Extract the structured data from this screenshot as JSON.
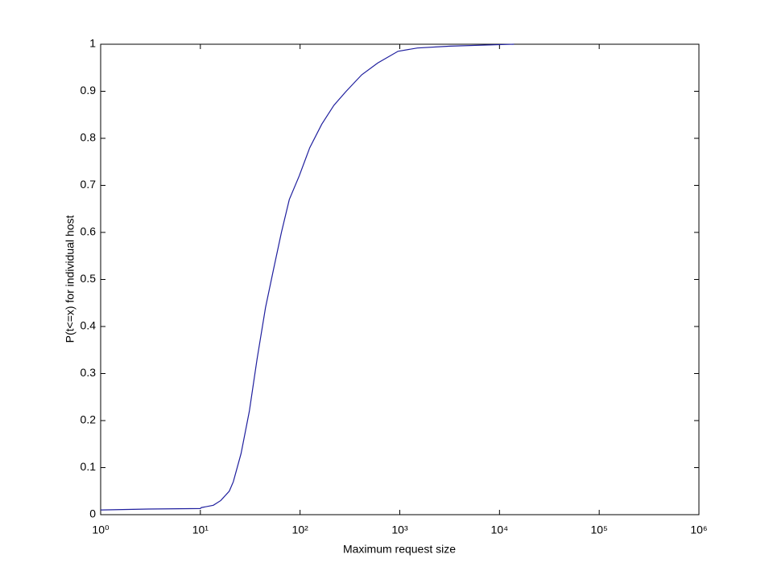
{
  "chart_data": {
    "type": "line",
    "x_label": "Maximum request size",
    "y_label": "P(t<=x) for individual host",
    "x_scale": "log",
    "xlim": [
      1,
      1000000
    ],
    "ylim": [
      0,
      1
    ],
    "xticks": [
      {
        "value": 1,
        "label": "10⁰"
      },
      {
        "value": 10,
        "label": "10¹"
      },
      {
        "value": 100,
        "label": "10²"
      },
      {
        "value": 1000,
        "label": "10³"
      },
      {
        "value": 10000,
        "label": "10⁴"
      },
      {
        "value": 100000,
        "label": "10⁵"
      },
      {
        "value": 1000000,
        "label": "10⁶"
      }
    ],
    "yticks": [
      0,
      0.1,
      0.2,
      0.3,
      0.4,
      0.5,
      0.6,
      0.7,
      0.8,
      0.9,
      1
    ],
    "grid": false,
    "series": [
      {
        "color": "#1f1f9e",
        "x": [
          1,
          3,
          10,
          10.2,
          13.5,
          16,
          19.5,
          21.4,
          25.6,
          31,
          37,
          45,
          54,
          65,
          78,
          98,
          125,
          165,
          218,
          290,
          415,
          600,
          960,
          1500,
          3200,
          9700,
          14000
        ],
        "values": [
          0.01,
          0.012,
          0.013,
          0.015,
          0.02,
          0.03,
          0.05,
          0.07,
          0.13,
          0.22,
          0.33,
          0.44,
          0.52,
          0.6,
          0.67,
          0.72,
          0.78,
          0.83,
          0.87,
          0.9,
          0.935,
          0.96,
          0.985,
          0.992,
          0.996,
          0.999,
          1
        ]
      }
    ]
  }
}
